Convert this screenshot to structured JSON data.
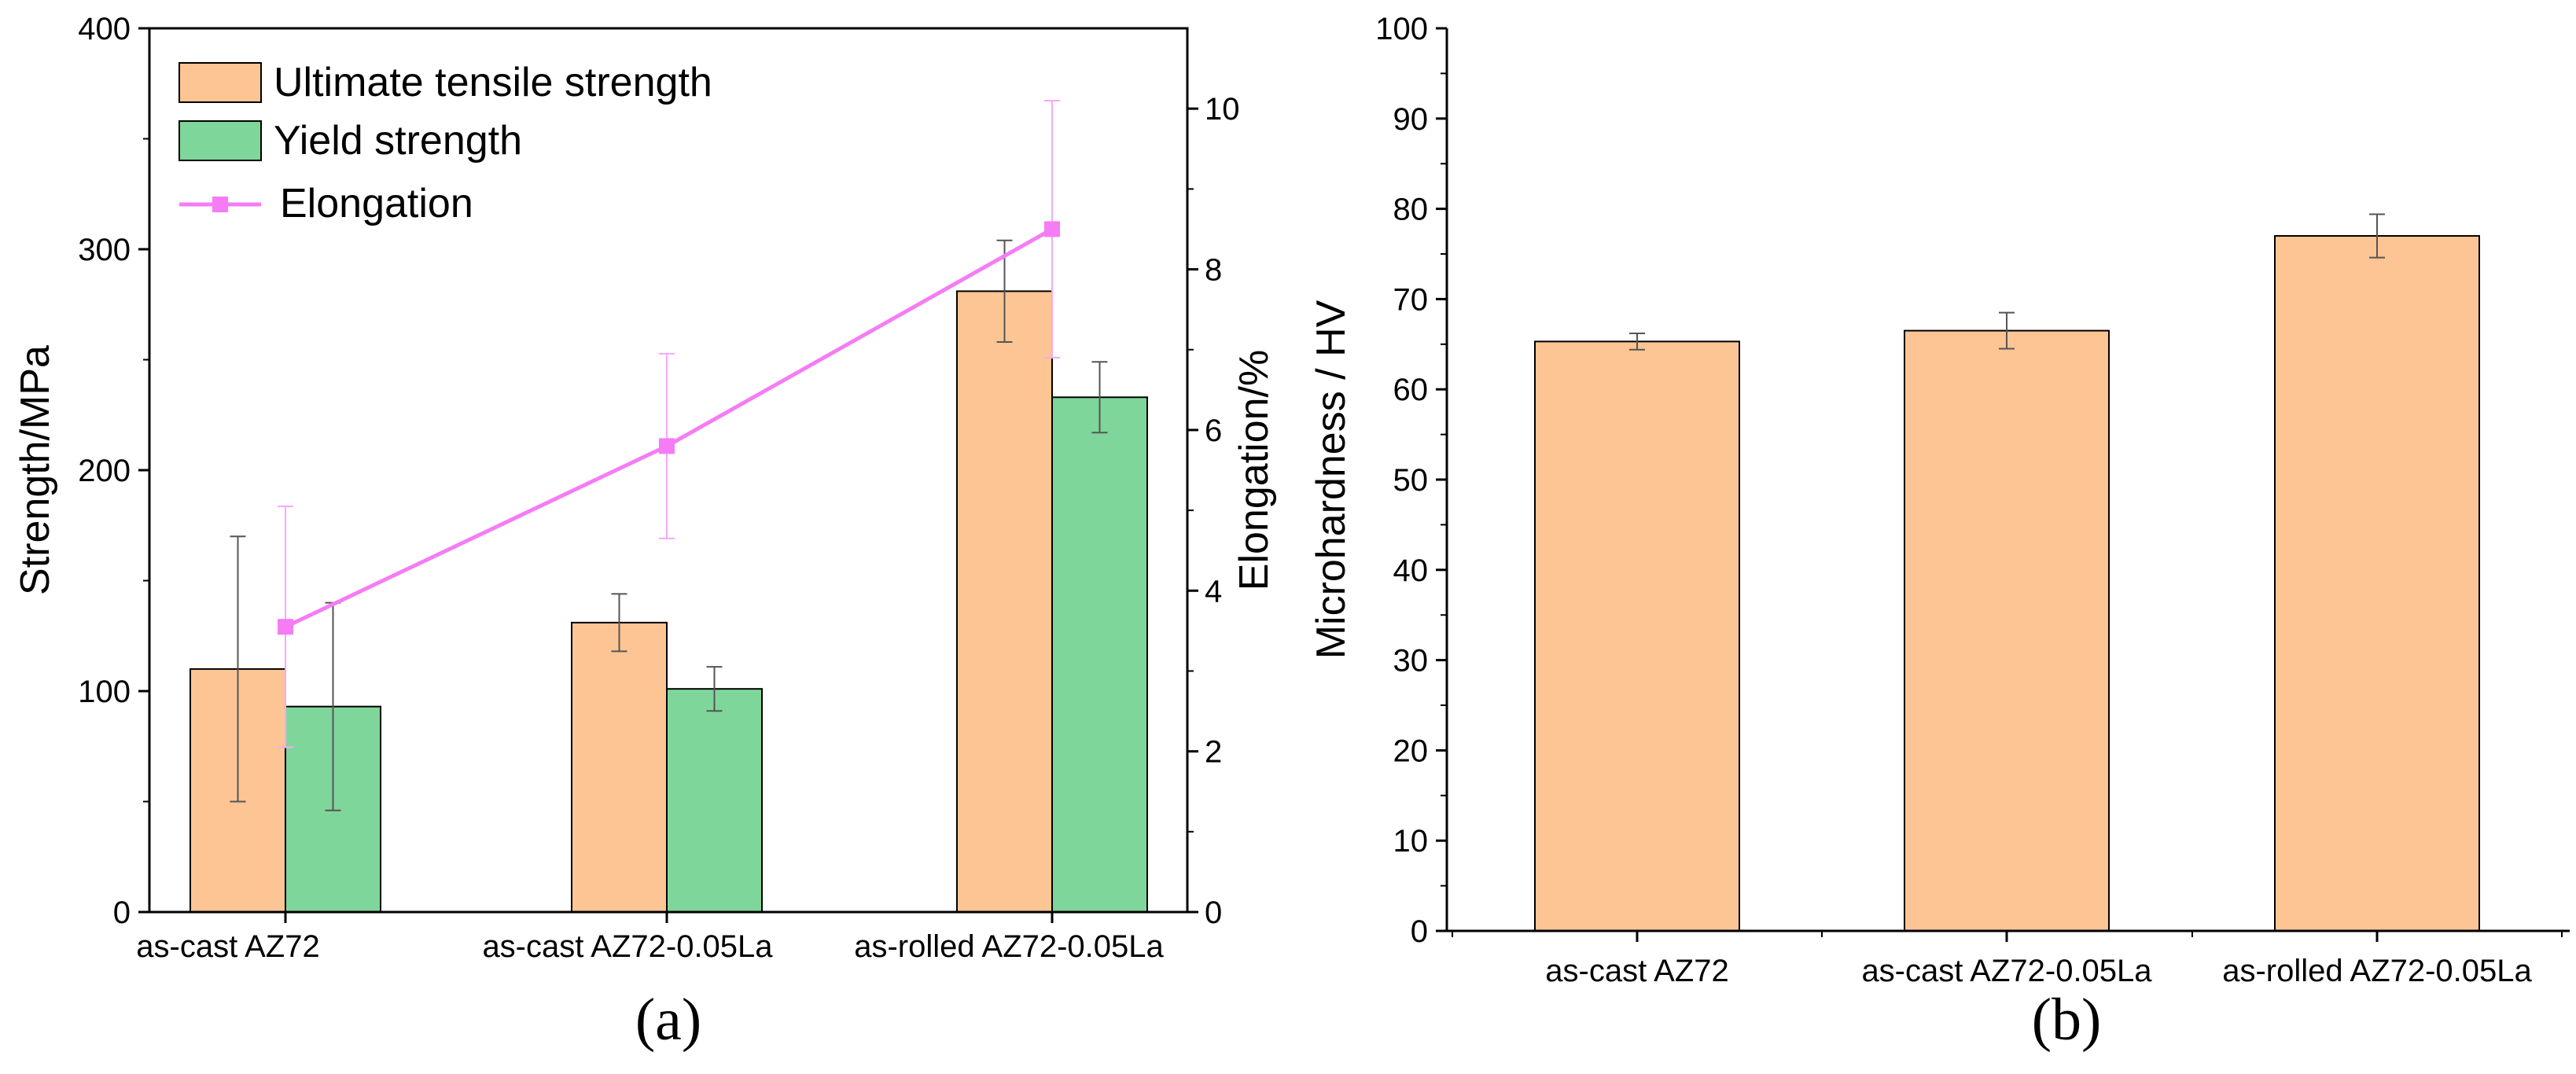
{
  "chart_data": [
    {
      "panel": "a",
      "type": "bar",
      "caption": "(a)",
      "categories": [
        "as-cast AZ72",
        "as-cast AZ72-0.05La",
        "as-rolled AZ72-0.05La"
      ],
      "ylabel": "Strength/MPa",
      "ylim": [
        0,
        400
      ],
      "yticks": [
        0,
        100,
        200,
        300,
        400
      ],
      "y2label": "Elongation/%",
      "y2lim": [
        0,
        11
      ],
      "y2ticks": [
        0,
        2,
        4,
        6,
        8,
        10
      ],
      "legend_position": "top-left",
      "colors": {
        "uts": "#FDC593",
        "ys": "#7FD69A",
        "elong": "#F57CF5"
      },
      "series": [
        {
          "name": "Ultimate tensile strength",
          "kind": "bar",
          "axis": "left",
          "color_key": "uts",
          "values": [
            110,
            131,
            281
          ],
          "errors": [
            60,
            13,
            23
          ]
        },
        {
          "name": "Yield strength",
          "kind": "bar",
          "axis": "left",
          "color_key": "ys",
          "values": [
            93,
            101,
            233
          ],
          "errors": [
            47,
            10,
            16
          ]
        },
        {
          "name": "Elongation",
          "kind": "line",
          "axis": "right",
          "color_key": "elong",
          "values": [
            3.55,
            5.8,
            8.5
          ],
          "errors": [
            1.5,
            1.15,
            1.6
          ]
        }
      ]
    },
    {
      "panel": "b",
      "type": "bar",
      "caption": "(b)",
      "categories": [
        "as-cast AZ72",
        "as-cast AZ72-0.05La",
        "as-rolled AZ72-0.05La"
      ],
      "ylabel": "Microhardness / HV",
      "ylim": [
        0,
        100
      ],
      "yticks": [
        0,
        10,
        20,
        30,
        40,
        50,
        60,
        70,
        80,
        90,
        100
      ],
      "color": "#FDC593",
      "series": [
        {
          "name": "Microhardness",
          "values": [
            65.3,
            66.5,
            77.0
          ],
          "errors": [
            0.9,
            2.0,
            2.4
          ]
        }
      ]
    }
  ]
}
